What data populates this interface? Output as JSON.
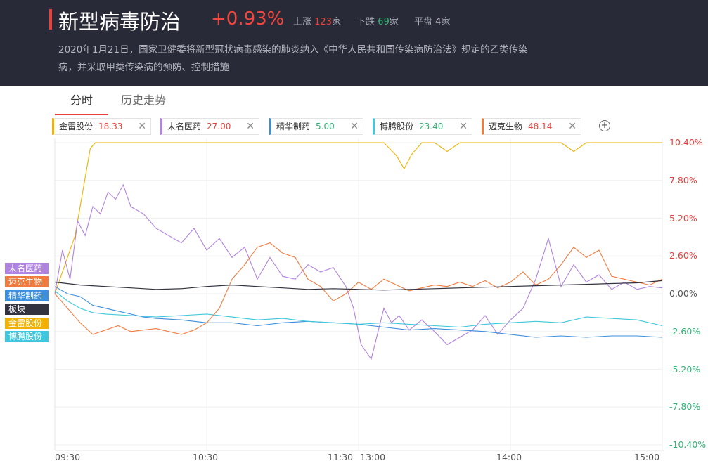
{
  "header": {
    "title": "新型病毒防治",
    "change": "+0.93%",
    "stats": {
      "up_label": "上涨",
      "up_count": "123",
      "up_unit": "家",
      "down_label": "下跌",
      "down_count": "69",
      "down_unit": "家",
      "flat_label": "平盘",
      "flat_count": "4",
      "flat_unit": "家"
    },
    "description": "2020年1月21日，国家卫健委将新型冠状病毒感染的肺炎纳入《中华人民共和国传染病防治法》规定的乙类传染病，并采取甲类传染病的预防、控制措施"
  },
  "tabs": [
    {
      "label": "分时",
      "active": true
    },
    {
      "label": "历史走势",
      "active": false
    }
  ],
  "stocks": [
    {
      "name": "金雷股份",
      "price": "18.33",
      "color": "#f2b100"
    },
    {
      "name": "未名医药",
      "price": "27.00",
      "color": "#b183e0"
    },
    {
      "name": "精华制药",
      "price": "5.00",
      "color": "#3d8edb"
    },
    {
      "name": "博腾股份",
      "price": "23.40",
      "color": "#3ec7dd"
    },
    {
      "name": "迈克生物",
      "price": "48.14",
      "color": "#f07b3f"
    }
  ],
  "chip_price_colors": [
    "#e8413c",
    "#e8413c",
    "#31b372",
    "#31b372",
    "#e8413c"
  ],
  "legend": [
    {
      "name": "未名医药",
      "color": "#b183e0"
    },
    {
      "name": "迈克生物",
      "color": "#f07b3f"
    },
    {
      "name": "精华制药",
      "color": "#3d8edb"
    },
    {
      "name": "板块",
      "color": "#333340"
    },
    {
      "name": "金雷股份",
      "color": "#f2b100"
    },
    {
      "name": "博腾股份",
      "color": "#3ec7dd"
    }
  ],
  "chart_data": {
    "type": "line",
    "y_ticks": [
      "10.40%",
      "7.80%",
      "5.20%",
      "2.60%",
      "0.00%",
      "-2.60%",
      "-5.20%",
      "-7.80%",
      "-10.40%"
    ],
    "y_tick_values": [
      10.4,
      7.8,
      5.2,
      2.6,
      0,
      -2.6,
      -5.2,
      -7.8,
      -10.4
    ],
    "x_ticks": [
      "09:30",
      "10:30",
      "11:30",
      "13:00",
      "14:00",
      "15:00"
    ],
    "ylim": [
      -10.4,
      10.4
    ],
    "series": [
      {
        "name": "金雷股份",
        "x": [
          0,
          4,
          8,
          10,
          12,
          14,
          16,
          20,
          30,
          60,
          90,
          130,
          135,
          138,
          141,
          145,
          150,
          155,
          160,
          200,
          205,
          210,
          240
        ],
        "values": [
          0,
          2,
          4,
          6,
          8,
          10,
          10.4,
          10.4,
          10.4,
          10.4,
          10.4,
          10.4,
          9.5,
          8.6,
          9.6,
          10.4,
          10.4,
          9.8,
          10.4,
          10.4,
          9.8,
          10.4,
          10.4
        ]
      },
      {
        "name": "未名医药",
        "x": [
          0,
          3,
          6,
          9,
          12,
          15,
          18,
          21,
          24,
          27,
          30,
          35,
          40,
          45,
          50,
          55,
          60,
          65,
          70,
          75,
          80,
          85,
          90,
          95,
          100,
          105,
          110,
          115,
          118,
          121,
          125,
          130,
          133,
          136,
          140,
          145,
          150,
          155,
          160,
          165,
          170,
          175,
          180,
          185,
          190,
          195,
          200,
          205,
          210,
          215,
          220,
          225,
          230,
          235,
          240
        ],
        "values": [
          0,
          3,
          1,
          5,
          4,
          6,
          5.5,
          7,
          6.5,
          7.5,
          6,
          5.5,
          4.5,
          4,
          3.5,
          4.5,
          3,
          3.8,
          2.5,
          3.2,
          1,
          2.5,
          1.2,
          1,
          2,
          1.5,
          1.8,
          0.5,
          -1,
          -3.5,
          -4.5,
          -1,
          -2,
          -1.5,
          -2.5,
          -1.8,
          -2.6,
          -3.5,
          -3,
          -2.5,
          -1.5,
          -2.8,
          -1.8,
          -1,
          1,
          3.8,
          0.5,
          2,
          0.8,
          1.3,
          0.3,
          0.8,
          0.3,
          0.5,
          0.4
        ]
      },
      {
        "name": "精华制药",
        "x": [
          0,
          5,
          10,
          15,
          20,
          25,
          30,
          35,
          40,
          50,
          60,
          70,
          80,
          90,
          100,
          110,
          120,
          130,
          140,
          150,
          160,
          170,
          180,
          190,
          200,
          210,
          220,
          230,
          240
        ],
        "values": [
          0.5,
          0,
          -0.2,
          -0.8,
          -1,
          -1.2,
          -1.4,
          -1.6,
          -1.7,
          -1.8,
          -2,
          -2,
          -2.2,
          -2,
          -1.9,
          -2,
          -2.1,
          -2.3,
          -2.5,
          -2.4,
          -2.5,
          -2.6,
          -2.8,
          -3,
          -2.9,
          -3,
          -2.9,
          -2.9,
          -3
        ]
      },
      {
        "name": "博腾股份",
        "x": [
          0,
          5,
          10,
          15,
          20,
          30,
          40,
          50,
          60,
          70,
          80,
          90,
          100,
          110,
          120,
          130,
          140,
          150,
          160,
          170,
          180,
          190,
          200,
          210,
          220,
          230,
          240
        ],
        "values": [
          0.2,
          -0.5,
          -1,
          -1.3,
          -1.4,
          -1.5,
          -1.6,
          -1.5,
          -1.4,
          -1.6,
          -1.8,
          -1.7,
          -1.9,
          -2,
          -2.1,
          -2,
          -2.1,
          -2.2,
          -2.3,
          -2.1,
          -2,
          -1.9,
          -2,
          -1.6,
          -1.7,
          -1.8,
          -2.2
        ]
      },
      {
        "name": "迈克生物",
        "x": [
          0,
          5,
          10,
          15,
          20,
          25,
          30,
          35,
          40,
          45,
          50,
          55,
          60,
          65,
          70,
          75,
          80,
          85,
          90,
          95,
          100,
          105,
          110,
          115,
          120,
          125,
          130,
          135,
          140,
          145,
          150,
          155,
          160,
          165,
          170,
          175,
          180,
          185,
          190,
          195,
          200,
          205,
          210,
          215,
          220,
          225,
          230,
          235,
          240
        ],
        "values": [
          0,
          -1,
          -2,
          -2.8,
          -2.5,
          -2.2,
          -2.6,
          -2.5,
          -2.4,
          -2.6,
          -2.8,
          -2.5,
          -2,
          -1,
          1,
          2,
          3.2,
          3.5,
          2.8,
          2.5,
          1,
          0.5,
          -0.5,
          0,
          0.8,
          0.3,
          1,
          0.6,
          0.2,
          0.4,
          0.6,
          0.5,
          0.8,
          0.5,
          0.9,
          0.4,
          0.8,
          1.5,
          0.6,
          1,
          2,
          3.2,
          2.5,
          3,
          1.2,
          1,
          0.8,
          0.6,
          1
        ]
      },
      {
        "name": "板块",
        "x": [
          0,
          10,
          20,
          30,
          40,
          50,
          60,
          70,
          80,
          90,
          100,
          110,
          120,
          130,
          140,
          150,
          160,
          170,
          180,
          190,
          200,
          210,
          220,
          230,
          240
        ],
        "values": [
          0.8,
          0.6,
          0.5,
          0.4,
          0.3,
          0.35,
          0.5,
          0.6,
          0.5,
          0.4,
          0.3,
          0.35,
          0.3,
          0.25,
          0.3,
          0.35,
          0.4,
          0.45,
          0.5,
          0.55,
          0.6,
          0.65,
          0.7,
          0.75,
          0.9
        ]
      }
    ]
  }
}
